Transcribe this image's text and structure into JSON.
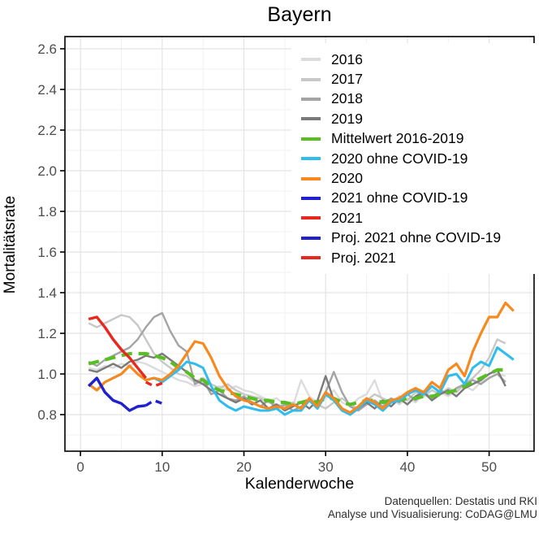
{
  "chart_data": {
    "type": "line",
    "title": "Bayern",
    "xlabel": "Kalenderwoche",
    "ylabel": "Mortalitätsrate",
    "caption_line1": "Datenquellen: Destatis und RKI",
    "caption_line2": "Analyse und Visualisierung: CoDAG@LMU",
    "x_domain": [
      -1.9,
      55.5
    ],
    "y_domain": [
      0.62,
      2.66
    ],
    "x_ticks": [
      0,
      10,
      20,
      30,
      40,
      50
    ],
    "x_minor": [
      5,
      15,
      25,
      35,
      45,
      55
    ],
    "y_tick_labels": [
      "0.8",
      "1.0",
      "1.2",
      "1.4",
      "1.6",
      "1.8",
      "2.0",
      "2.2",
      "2.4",
      "2.6"
    ],
    "y_minor": [
      0.7,
      0.9,
      1.1,
      1.3,
      1.5,
      1.7,
      1.9,
      2.1,
      2.3,
      2.5
    ],
    "grid": true,
    "legend_position": "top-right-inside",
    "colors": {
      "grid_major": "#e4e4e4",
      "grid_minor": "#f2f2f2",
      "panel_border": "#000000",
      "tick_label": "#4d4d4d"
    },
    "series": [
      {
        "name": "2016",
        "color": "#dcdcdc",
        "dash": "",
        "width": 2.4,
        "start_week": 1,
        "values": [
          1.03,
          1.02,
          1.04,
          1.03,
          1.05,
          1.04,
          1.06,
          1.05,
          1.03,
          1.01,
          0.99,
          0.97,
          0.96,
          0.94,
          0.95,
          0.92,
          0.94,
          0.92,
          0.94,
          0.92,
          0.91,
          0.89,
          0.87,
          0.88,
          0.85,
          0.84,
          0.97,
          0.89,
          0.86,
          0.88,
          0.92,
          0.86,
          0.84,
          0.88,
          0.9,
          0.97,
          0.86,
          0.88,
          0.85,
          0.88,
          0.86,
          0.9,
          0.88,
          0.91,
          0.89,
          0.92,
          0.94,
          0.92,
          0.96,
          0.98,
          1.0,
          0.99
        ]
      },
      {
        "name": "2017",
        "color": "#c8c8c8",
        "dash": "",
        "width": 2.4,
        "start_week": 1,
        "values": [
          1.25,
          1.23,
          1.25,
          1.27,
          1.29,
          1.28,
          1.24,
          1.17,
          1.1,
          1.06,
          1.03,
          1.0,
          0.99,
          0.96,
          0.98,
          0.95,
          0.93,
          0.95,
          0.92,
          0.9,
          0.89,
          0.88,
          0.86,
          0.85,
          0.84,
          0.86,
          0.83,
          0.87,
          0.85,
          0.83,
          0.86,
          0.88,
          0.85,
          0.83,
          0.87,
          0.9,
          0.88,
          0.86,
          0.89,
          0.87,
          0.91,
          0.89,
          0.92,
          0.9,
          0.93,
          0.91,
          0.95,
          0.98,
          1.02,
          1.08,
          1.17,
          1.15
        ]
      },
      {
        "name": "2018",
        "color": "#a4a4a4",
        "dash": "",
        "width": 2.4,
        "start_week": 1,
        "values": [
          1.06,
          1.04,
          1.07,
          1.09,
          1.11,
          1.13,
          1.17,
          1.23,
          1.28,
          1.3,
          1.21,
          1.14,
          1.11,
          0.95,
          0.97,
          0.9,
          0.92,
          0.88,
          0.87,
          0.89,
          0.86,
          0.84,
          0.87,
          0.83,
          0.85,
          0.82,
          0.84,
          0.87,
          0.83,
          0.91,
          1.01,
          0.91,
          0.84,
          0.82,
          0.85,
          0.87,
          0.84,
          0.88,
          0.86,
          0.9,
          0.87,
          0.91,
          0.88,
          0.92,
          0.9,
          0.93,
          0.95,
          0.97,
          0.95,
          0.98,
          1.0,
          0.96
        ]
      },
      {
        "name": "2019",
        "color": "#7a7a7a",
        "dash": "",
        "width": 2.4,
        "start_week": 1,
        "values": [
          1.02,
          1.01,
          1.03,
          1.05,
          1.03,
          1.06,
          1.07,
          1.09,
          1.08,
          1.1,
          1.07,
          1.04,
          1.01,
          0.97,
          0.95,
          0.92,
          0.9,
          0.88,
          0.86,
          0.88,
          0.85,
          0.87,
          0.83,
          0.85,
          0.82,
          0.84,
          0.86,
          0.83,
          0.87,
          0.99,
          0.87,
          0.83,
          0.8,
          0.83,
          0.86,
          0.83,
          0.87,
          0.84,
          0.88,
          0.85,
          0.89,
          0.91,
          0.87,
          0.9,
          0.92,
          0.89,
          0.93,
          0.95,
          0.97,
          1.0,
          1.02,
          0.94
        ]
      },
      {
        "name": "Mittelwert 2016-2019",
        "color": "#58bf23",
        "dash": "13,8",
        "width": 4.2,
        "start_week": 1,
        "values": [
          1.05,
          1.06,
          1.07,
          1.08,
          1.09,
          1.1,
          1.1,
          1.1,
          1.09,
          1.08,
          1.06,
          1.03,
          1.01,
          0.98,
          0.97,
          0.94,
          0.92,
          0.91,
          0.9,
          0.89,
          0.88,
          0.87,
          0.87,
          0.86,
          0.86,
          0.85,
          0.86,
          0.87,
          0.86,
          0.88,
          0.88,
          0.86,
          0.85,
          0.86,
          0.87,
          0.87,
          0.86,
          0.87,
          0.87,
          0.88,
          0.88,
          0.89,
          0.89,
          0.9,
          0.91,
          0.92,
          0.94,
          0.96,
          0.98,
          1.0,
          1.02,
          1.02
        ]
      },
      {
        "name": "2020 ohne COVID-19",
        "color": "#30bdee",
        "dash": "",
        "width": 3.0,
        "start_week": 1,
        "values": [
          0.95,
          0.92,
          0.96,
          0.98,
          1.0,
          1.04,
          1.0,
          0.97,
          0.98,
          0.96,
          0.99,
          1.02,
          1.06,
          1.05,
          1.03,
          0.94,
          0.87,
          0.84,
          0.82,
          0.84,
          0.83,
          0.82,
          0.82,
          0.83,
          0.8,
          0.82,
          0.82,
          0.87,
          0.83,
          0.9,
          0.87,
          0.82,
          0.8,
          0.83,
          0.87,
          0.85,
          0.82,
          0.86,
          0.87,
          0.9,
          0.92,
          0.9,
          0.94,
          0.91,
          0.99,
          1.0,
          0.95,
          1.03,
          1.06,
          1.04,
          1.13,
          1.1,
          1.07
        ]
      },
      {
        "name": "2020",
        "color": "#f8891e",
        "dash": "",
        "width": 3.2,
        "start_week": 1,
        "values": [
          0.95,
          0.92,
          0.96,
          0.98,
          1.0,
          1.04,
          1.0,
          0.97,
          0.98,
          0.97,
          1.0,
          1.04,
          1.1,
          1.16,
          1.15,
          1.08,
          0.99,
          0.93,
          0.89,
          0.87,
          0.86,
          0.84,
          0.83,
          0.84,
          0.83,
          0.85,
          0.83,
          0.88,
          0.84,
          0.91,
          0.88,
          0.83,
          0.81,
          0.84,
          0.88,
          0.86,
          0.83,
          0.87,
          0.88,
          0.91,
          0.93,
          0.91,
          0.96,
          0.93,
          1.02,
          1.05,
          0.99,
          1.11,
          1.2,
          1.28,
          1.28,
          1.35,
          1.31
        ]
      },
      {
        "name": "2021 ohne COVID-19",
        "color": "#2020d0",
        "dash": "",
        "width": 3.4,
        "start_week": 1,
        "values": [
          0.94,
          0.98,
          0.91,
          0.87,
          0.855,
          0.82,
          0.84,
          0.845
        ]
      },
      {
        "name": "2021",
        "color": "#e8281e",
        "dash": "",
        "width": 3.4,
        "start_week": 1,
        "values": [
          1.27,
          1.28,
          1.23,
          1.17,
          1.12,
          1.08,
          1.03,
          0.98
        ]
      },
      {
        "name": "Proj. 2021 ohne COVID-19",
        "color": "#2020d0",
        "dash": "8,6",
        "width": 3.4,
        "start_week": 8,
        "values": [
          0.845,
          0.87,
          0.855
        ]
      },
      {
        "name": "Proj. 2021",
        "color": "#e8281e",
        "dash": "8,6",
        "width": 3.4,
        "start_week": 8,
        "values": [
          0.96,
          0.94,
          0.955
        ]
      }
    ]
  }
}
